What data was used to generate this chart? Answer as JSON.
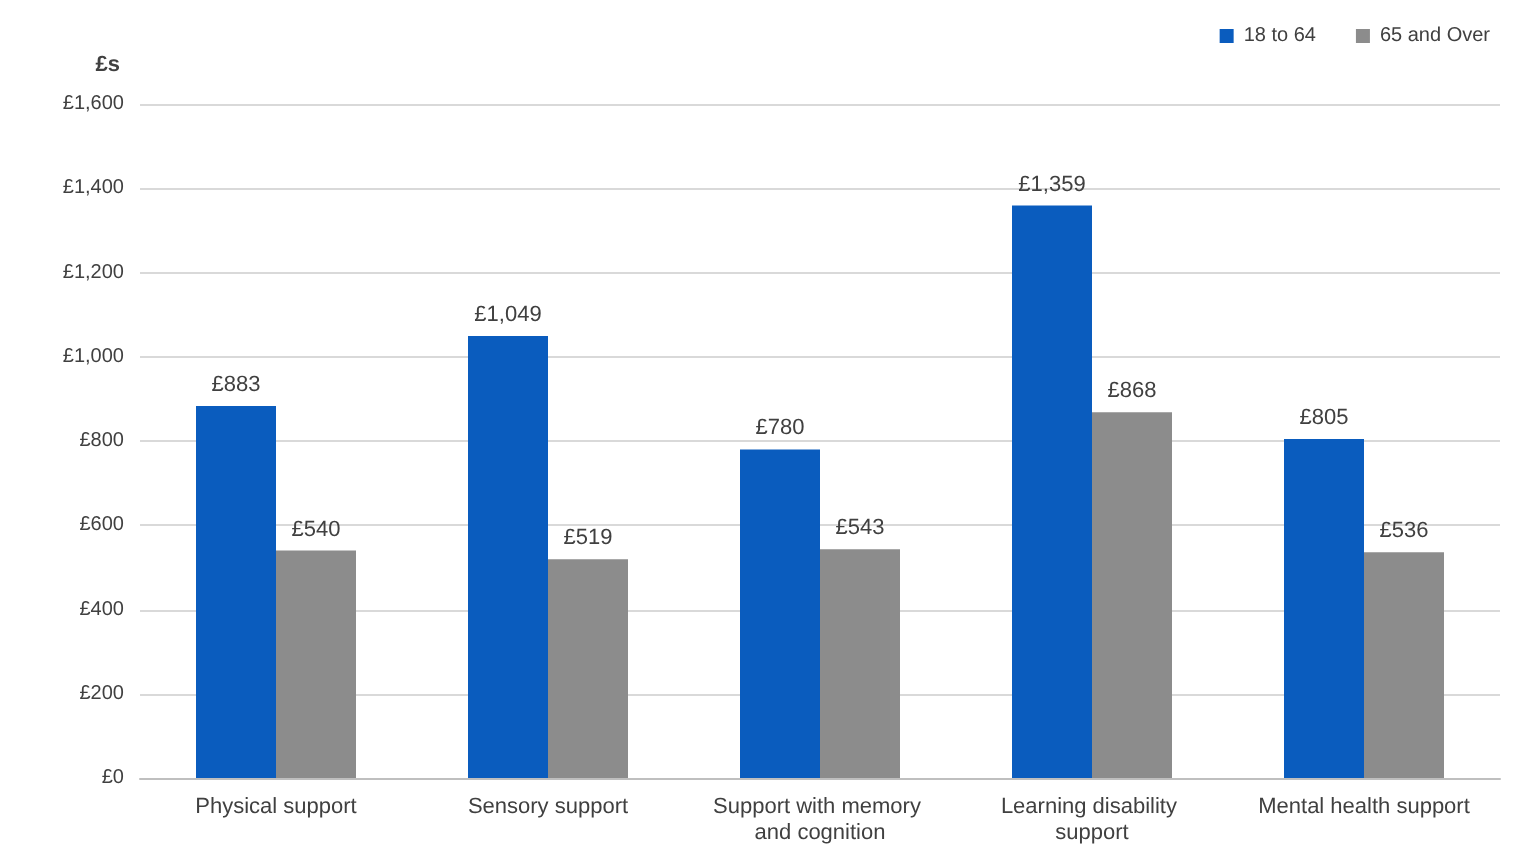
{
  "chart_data": {
    "type": "bar",
    "ylabel": "£s",
    "categories": [
      "Physical support",
      "Sensory support",
      "Support with memory and cognition",
      "Learning disability support",
      "Mental health support"
    ],
    "series": [
      {
        "name": "18 to 64",
        "color": "#0a5cbe",
        "values": [
          883,
          1049,
          780,
          1359,
          805
        ],
        "value_labels": [
          "£883",
          "£1,049",
          "£780",
          "£1,359",
          "£805"
        ]
      },
      {
        "name": "65 and Over",
        "color": "#8c8c8c",
        "values": [
          540,
          519,
          543,
          868,
          536
        ],
        "value_labels": [
          "£540",
          "£519",
          "£543",
          "£868",
          "£536"
        ]
      }
    ],
    "ylim": [
      0,
      1600
    ],
    "yticks": [
      {
        "value": 0,
        "label": "£0"
      },
      {
        "value": 200,
        "label": "£200"
      },
      {
        "value": 400,
        "label": "£400"
      },
      {
        "value": 600,
        "label": "£600"
      },
      {
        "value": 800,
        "label": "£800"
      },
      {
        "value": 1000,
        "label": "£1,000"
      },
      {
        "value": 1200,
        "label": "£1,200"
      },
      {
        "value": 1400,
        "label": "£1,400"
      },
      {
        "value": 1600,
        "label": "£1,600"
      }
    ],
    "grid": "y",
    "legend": "top right"
  }
}
